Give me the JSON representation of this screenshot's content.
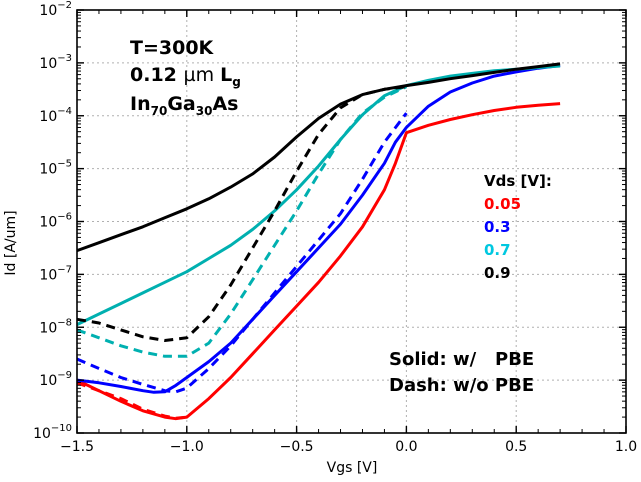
{
  "chart_data": {
    "type": "line",
    "xlabel": "Vgs [V]",
    "ylabel": "Id [A/um]",
    "xlim": [
      -1.5,
      1.0
    ],
    "ylim_log10": [
      -10,
      -2
    ],
    "x_ticks": [
      "-1.5",
      "-1.0",
      "-0.5",
      "0.0",
      "0.5",
      "1.0"
    ],
    "y_ticks": [
      {
        "base": "10",
        "exp": "-10"
      },
      {
        "base": "10",
        "exp": "-9"
      },
      {
        "base": "10",
        "exp": "-8"
      },
      {
        "base": "10",
        "exp": "-7"
      },
      {
        "base": "10",
        "exp": "-6"
      },
      {
        "base": "10",
        "exp": "-5"
      },
      {
        "base": "10",
        "exp": "-4"
      },
      {
        "base": "10",
        "exp": "-3"
      },
      {
        "base": "10",
        "exp": "-2"
      }
    ],
    "grid": true,
    "annotation": {
      "line1": "T=300K",
      "line2": {
        "value": "0.12 ",
        "unit": "µm",
        "sym": "L",
        "sub": "g"
      },
      "line3": {
        "p1": "In",
        "s1": "70",
        "p2": "Ga",
        "s2": "30",
        "p3": "As"
      }
    },
    "legend_title": "Vds [V]:",
    "style_note": {
      "solid": "Solid: w/   PBE",
      "dash": "Dash: w/o PBE"
    },
    "series": [
      {
        "name": "0.05",
        "color": "#ff0000",
        "style": "solid",
        "x": [
          -1.5,
          -1.3,
          -1.2,
          -1.1,
          -1.05,
          -1.0,
          -0.9,
          -0.8,
          -0.7,
          -0.6,
          -0.5,
          -0.4,
          -0.3,
          -0.2,
          -0.1,
          -0.05,
          0.0,
          0.1,
          0.2,
          0.3,
          0.4,
          0.5,
          0.6,
          0.7
        ],
        "log10_y": [
          -9.0,
          -9.4,
          -9.58,
          -9.7,
          -9.73,
          -9.7,
          -9.35,
          -8.95,
          -8.5,
          -8.05,
          -7.6,
          -7.15,
          -6.65,
          -6.1,
          -5.4,
          -4.9,
          -4.32,
          -4.18,
          -4.07,
          -3.98,
          -3.9,
          -3.84,
          -3.8,
          -3.77
        ]
      },
      {
        "name": "0.05 w/o PBE",
        "color": "#ff0000",
        "style": "dash",
        "x": [
          -1.5,
          -1.3,
          -1.2,
          -1.1,
          -1.05,
          -1.0
        ],
        "log10_y": [
          -9.05,
          -9.35,
          -9.55,
          -9.68,
          -9.72,
          -9.7
        ]
      },
      {
        "name": "0.3",
        "color": "#0000ff",
        "style": "solid",
        "x": [
          -1.5,
          -1.4,
          -1.3,
          -1.2,
          -1.15,
          -1.1,
          -1.05,
          -1.0,
          -0.9,
          -0.8,
          -0.7,
          -0.6,
          -0.5,
          -0.4,
          -0.3,
          -0.2,
          -0.1,
          -0.05,
          0.0,
          0.1,
          0.2,
          0.3,
          0.4,
          0.5,
          0.6,
          0.7
        ],
        "log10_y": [
          -9.0,
          -9.05,
          -9.12,
          -9.2,
          -9.23,
          -9.22,
          -9.1,
          -8.95,
          -8.65,
          -8.3,
          -7.85,
          -7.4,
          -6.95,
          -6.5,
          -6.05,
          -5.5,
          -4.9,
          -4.5,
          -4.22,
          -3.82,
          -3.55,
          -3.38,
          -3.25,
          -3.17,
          -3.1,
          -3.05
        ]
      },
      {
        "name": "0.3 w/o PBE",
        "color": "#0000ff",
        "style": "dash",
        "x": [
          -1.5,
          -1.4,
          -1.3,
          -1.2,
          -1.1,
          -1.05,
          -1.0,
          -0.9,
          -0.8,
          -0.7,
          -0.6,
          -0.5,
          -0.4,
          -0.3,
          -0.2,
          -0.1,
          0.0
        ],
        "log10_y": [
          -8.6,
          -8.78,
          -8.95,
          -9.08,
          -9.2,
          -9.22,
          -9.15,
          -8.78,
          -8.35,
          -7.85,
          -7.35,
          -6.85,
          -6.35,
          -5.85,
          -5.2,
          -4.5,
          -3.95
        ]
      },
      {
        "name": "0.7",
        "color": "#00b0b0",
        "style": "solid",
        "x": [
          -1.5,
          -1.4,
          -1.3,
          -1.2,
          -1.1,
          -1.0,
          -0.9,
          -0.8,
          -0.7,
          -0.6,
          -0.5,
          -0.4,
          -0.3,
          -0.2,
          -0.1,
          0.0,
          0.1,
          0.2,
          0.3,
          0.4,
          0.5,
          0.6,
          0.7
        ],
        "log10_y": [
          -7.95,
          -7.75,
          -7.55,
          -7.35,
          -7.15,
          -6.95,
          -6.7,
          -6.45,
          -6.15,
          -5.8,
          -5.4,
          -4.95,
          -4.45,
          -3.98,
          -3.62,
          -3.43,
          -3.33,
          -3.25,
          -3.2,
          -3.15,
          -3.12,
          -3.09,
          -3.06
        ]
      },
      {
        "name": "0.7 w/o PBE",
        "color": "#00b0b0",
        "style": "dash",
        "x": [
          -1.5,
          -1.4,
          -1.3,
          -1.2,
          -1.1,
          -1.0,
          -0.9,
          -0.8,
          -0.7,
          -0.6,
          -0.5,
          -0.4,
          -0.3,
          -0.2,
          -0.1,
          0.0
        ],
        "log10_y": [
          -8.05,
          -8.2,
          -8.35,
          -8.47,
          -8.55,
          -8.55,
          -8.3,
          -7.75,
          -7.1,
          -6.45,
          -5.8,
          -5.1,
          -4.45,
          -3.95,
          -3.65,
          -3.45
        ]
      },
      {
        "name": "0.9",
        "color": "#000000",
        "style": "solid",
        "x": [
          -1.5,
          -1.4,
          -1.3,
          -1.2,
          -1.1,
          -1.0,
          -0.9,
          -0.8,
          -0.7,
          -0.6,
          -0.5,
          -0.4,
          -0.3,
          -0.2,
          -0.1,
          0.0,
          0.1,
          0.2,
          0.3,
          0.4,
          0.5,
          0.6,
          0.7
        ],
        "log10_y": [
          -6.55,
          -6.4,
          -6.25,
          -6.1,
          -5.93,
          -5.76,
          -5.57,
          -5.35,
          -5.1,
          -4.78,
          -4.4,
          -4.05,
          -3.78,
          -3.6,
          -3.5,
          -3.43,
          -3.37,
          -3.3,
          -3.24,
          -3.18,
          -3.12,
          -3.07,
          -3.02
        ]
      },
      {
        "name": "0.9 w/o PBE",
        "color": "#000000",
        "style": "dash",
        "x": [
          -1.5,
          -1.4,
          -1.3,
          -1.2,
          -1.1,
          -1.0,
          -0.9,
          -0.8,
          -0.7,
          -0.6,
          -0.5,
          -0.4,
          -0.3,
          -0.2,
          -0.1,
          0.0
        ],
        "log10_y": [
          -7.85,
          -7.92,
          -8.05,
          -8.18,
          -8.25,
          -8.2,
          -7.8,
          -7.2,
          -6.5,
          -5.8,
          -5.05,
          -4.35,
          -3.85,
          -3.6,
          -3.5,
          -3.45
        ]
      }
    ],
    "legend": [
      {
        "label": "0.05",
        "color": "#ff0000"
      },
      {
        "label": "0.3",
        "color": "#0000ff"
      },
      {
        "label": "0.7",
        "color": "#00c8e0"
      },
      {
        "label": "0.9",
        "color": "#000000"
      }
    ]
  }
}
